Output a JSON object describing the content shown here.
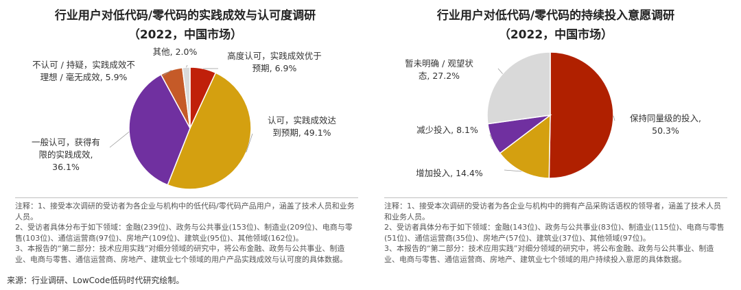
{
  "chart_data": [
    {
      "type": "pie",
      "title": "行业用户对低代码/零代码的实践成效与认可度调研",
      "subtitle": "（2022，中国市场）",
      "slices": [
        {
          "label": "高度认可，实践成效优于预期",
          "value": 6.9,
          "value_text": "6.9%",
          "color": "#C0200A"
        },
        {
          "label": "认可，实践成效达到预期",
          "value": 49.1,
          "value_text": "49.1%",
          "color": "#D4A010"
        },
        {
          "label": "一般认可，获得有限的实践成效",
          "value": 36.1,
          "value_text": "36.1%",
          "color": "#7030A0"
        },
        {
          "label": "不认可 / 持疑，实践成效不理想 / 毫无成效",
          "value": 5.9,
          "value_text": "5.9%",
          "color": "#C55A28"
        },
        {
          "label": "其他",
          "value": 2.0,
          "value_text": "2.0%",
          "color": "#D9D9D9"
        }
      ]
    },
    {
      "type": "pie",
      "title": "行业用户对低代码/零代码的持续投入意愿调研",
      "subtitle": "（2022，中国市场）",
      "slices": [
        {
          "label": "保持同量级的投入",
          "value": 50.3,
          "value_text": "50.3%",
          "color": "#B02000"
        },
        {
          "label": "增加投入",
          "value": 14.4,
          "value_text": "14.4%",
          "color": "#D4A010"
        },
        {
          "label": "减少投入",
          "value": 8.1,
          "value_text": "8.1%",
          "color": "#7030A0"
        },
        {
          "label": "暂未明确 / 观望状态",
          "value": 27.2,
          "value_text": "27.2%",
          "color": "#D9D9D9"
        }
      ]
    }
  ],
  "labels_left": {
    "s0": [
      "高度认可，实践成效优于",
      "预期, 6.9%"
    ],
    "s1": [
      "认可，实践成效达",
      "到预期, 49.1%"
    ],
    "s2": [
      "一般认可，获得有",
      "限的实践成效,",
      "36.1%"
    ],
    "s3": [
      "不认可 / 持疑，实践成效不",
      "理想 / 毫无成效, 5.9%"
    ],
    "s4": [
      "其他, 2.0%"
    ]
  },
  "labels_right": {
    "s0": [
      "保持同量级的投入,",
      "50.3%"
    ],
    "s1": [
      "增加投入, 14.4%"
    ],
    "s2": [
      "减少投入, 8.1%"
    ],
    "s3": [
      "暂未明确 / 观望状",
      "态, 27.2%"
    ]
  },
  "notes_left": [
    "注释：1、接受本次调研的受访者为各企业与机构中的低代码/零代码产品用户，涵盖了技术人员和业务人员。",
    "2、受访者具体分布于如下领域：金融(239位)、政务与公共事业(153位)、制造业(209位)、电商与零售(103位)、通信运营商(97位)、房地产(109位)、建筑业(95位)、其他领域(162位)。",
    "3、本报告的“第二部分：技术应用实践”对细分领域的研究中，将公布金融、政务与公共事业、制造业、电商与零售、通信运营商、房地产、建筑业七个领域的用户产品实践成效与认可度的具体数据。"
  ],
  "notes_right": [
    "注释：1、接受本次调研的受访者为各企业与机构中的拥有产品采购话语权的领导者，涵盖了技术人员和业务人员。",
    "2、受访者具体分布于如下领域：金融(143位)、政务与公共事业(83位)、制造业(115位)、电商与零售(51位)、通信运营商(35位)、房地产(57位)、建筑业(37位)、其他领域(97位)。",
    "3、本报告的“第二部分：技术应用实践”对细分领域的研究中，将公布金融、政务与公共事业、制造业、电商与零售、通信运营商、房地产、建筑业七个领域的用户持续投入意愿的具体数据。"
  ],
  "source": "来源：行业调研、LowCode低码时代研究绘制。"
}
